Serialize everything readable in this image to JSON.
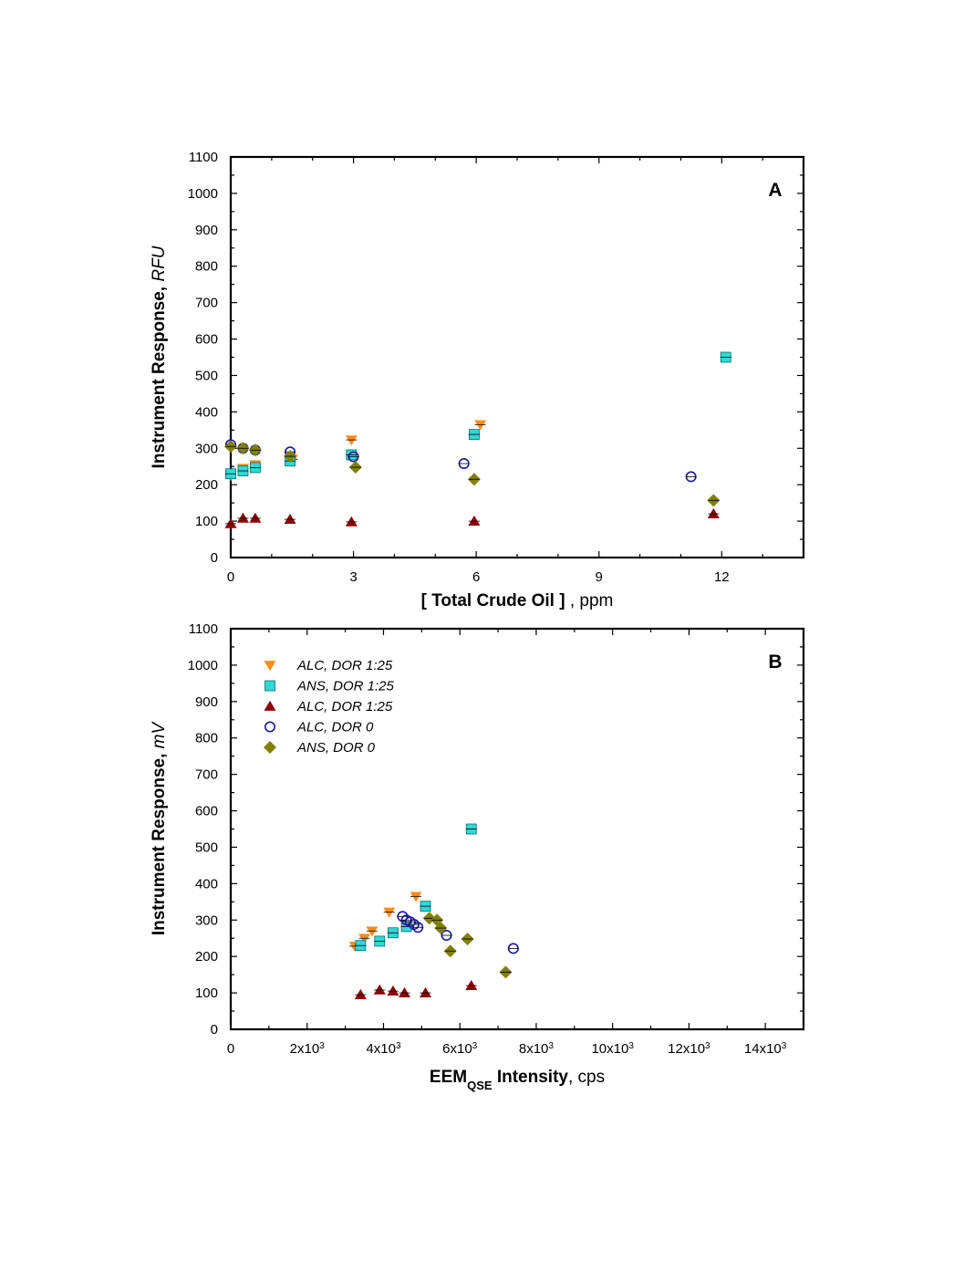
{
  "chart_data": [
    {
      "type": "scatter",
      "panel_label": "A",
      "xlabel_parts": [
        {
          "text": "[ Total Crude Oil ]",
          "weight": "bold"
        },
        {
          "text": " , ppm",
          "weight": "normal"
        }
      ],
      "ylabel_parts": [
        {
          "text": "Instrument Response, ",
          "weight": "bold"
        },
        {
          "text": "RFU",
          "style": "italic"
        }
      ],
      "xlim": [
        0,
        14
      ],
      "ylim": [
        0,
        1100
      ],
      "xticks": [
        {
          "v": 0,
          "label": "0"
        },
        {
          "v": 3,
          "label": "3"
        },
        {
          "v": 6,
          "label": "6"
        },
        {
          "v": 9,
          "label": "9"
        },
        {
          "v": 12,
          "label": "12"
        }
      ],
      "yticks": [
        {
          "v": 0,
          "label": "0"
        },
        {
          "v": 100,
          "label": "100"
        },
        {
          "v": 200,
          "label": "200"
        },
        {
          "v": 300,
          "label": "300"
        },
        {
          "v": 400,
          "label": "400"
        },
        {
          "v": 500,
          "label": "500"
        },
        {
          "v": 600,
          "label": "600"
        },
        {
          "v": 700,
          "label": "700"
        },
        {
          "v": 800,
          "label": "800"
        },
        {
          "v": 900,
          "label": "900"
        },
        {
          "v": 1000,
          "label": "1000"
        },
        {
          "v": 1100,
          "label": "1100"
        }
      ],
      "grid": false,
      "series": [
        {
          "marker": "triangle-down",
          "color": "#ff8c1a",
          "points": [
            [
              0,
              225
            ],
            [
              0.3,
              245
            ],
            [
              0.6,
              255
            ],
            [
              1.5,
              270
            ],
            [
              2.95,
              323
            ],
            [
              6.1,
              365
            ]
          ]
        },
        {
          "marker": "square",
          "color": "#33d6d6",
          "points": [
            [
              0,
              230
            ],
            [
              0.3,
              238
            ],
            [
              0.6,
              247
            ],
            [
              1.45,
              265
            ],
            [
              2.95,
              282
            ],
            [
              5.95,
              338
            ],
            [
              12.1,
              550
            ]
          ]
        },
        {
          "marker": "triangle-up",
          "color": "#8b0000",
          "points": [
            [
              0,
              93
            ],
            [
              0.3,
              108
            ],
            [
              0.6,
              108
            ],
            [
              1.45,
              105
            ],
            [
              2.95,
              98
            ],
            [
              5.95,
              100
            ],
            [
              11.8,
              120
            ]
          ]
        },
        {
          "marker": "circle-open",
          "color": "#1a1a99",
          "points": [
            [
              0,
              310
            ],
            [
              0.3,
              300
            ],
            [
              0.6,
              295
            ],
            [
              1.45,
              290
            ],
            [
              3.0,
              277
            ],
            [
              5.7,
              258
            ],
            [
              11.25,
              222
            ]
          ]
        },
        {
          "marker": "diamond",
          "color": "#808000",
          "points": [
            [
              0,
              305
            ],
            [
              0.3,
              300
            ],
            [
              0.6,
              295
            ],
            [
              1.45,
              278
            ],
            [
              3.05,
              248
            ],
            [
              5.95,
              215
            ],
            [
              11.8,
              157
            ]
          ]
        }
      ]
    },
    {
      "type": "scatter",
      "panel_label": "B",
      "xlabel_parts": [
        {
          "text": "EEM",
          "weight": "bold"
        },
        {
          "text": "QSE",
          "weight": "bold",
          "sub": true
        },
        {
          "text": " Intensity",
          "weight": "bold"
        },
        {
          "text": ", cps",
          "weight": "normal"
        }
      ],
      "ylabel_parts": [
        {
          "text": "Instrument Response, ",
          "weight": "bold"
        },
        {
          "text": "mV",
          "style": "italic"
        }
      ],
      "xlim": [
        0,
        15000
      ],
      "ylim": [
        0,
        1100
      ],
      "xticks": [
        {
          "v": 0,
          "label": "0"
        },
        {
          "v": 2000,
          "label": "2x10",
          "sup": "3"
        },
        {
          "v": 4000,
          "label": "4x10",
          "sup": "3"
        },
        {
          "v": 6000,
          "label": "6x10",
          "sup": "3"
        },
        {
          "v": 8000,
          "label": "8x10",
          "sup": "3"
        },
        {
          "v": 10000,
          "label": "10x10",
          "sup": "3"
        },
        {
          "v": 12000,
          "label": "12x10",
          "sup": "3"
        },
        {
          "v": 14000,
          "label": "14x10",
          "sup": "3"
        }
      ],
      "yticks": [
        {
          "v": 0,
          "label": "0"
        },
        {
          "v": 100,
          "label": "100"
        },
        {
          "v": 200,
          "label": "200"
        },
        {
          "v": 300,
          "label": "300"
        },
        {
          "v": 400,
          "label": "400"
        },
        {
          "v": 500,
          "label": "500"
        },
        {
          "v": 600,
          "label": "600"
        },
        {
          "v": 700,
          "label": "700"
        },
        {
          "v": 800,
          "label": "800"
        },
        {
          "v": 900,
          "label": "900"
        },
        {
          "v": 1000,
          "label": "1000"
        },
        {
          "v": 1100,
          "label": "1100"
        }
      ],
      "grid": false,
      "legend_position": "top-left",
      "series": [
        {
          "name": "ALC, DOR 1:25",
          "marker": "triangle-down",
          "color": "#ff8c1a",
          "points": [
            [
              3250,
              228
            ],
            [
              3500,
              250
            ],
            [
              3700,
              270
            ],
            [
              4150,
              322
            ],
            [
              4850,
              365
            ]
          ]
        },
        {
          "name": "ANS, DOR 1:25",
          "marker": "square",
          "color": "#33d6d6",
          "points": [
            [
              3400,
              230
            ],
            [
              3900,
              242
            ],
            [
              4250,
              265
            ],
            [
              4600,
              282
            ],
            [
              5100,
              338
            ],
            [
              6300,
              550
            ]
          ]
        },
        {
          "name": "ALC, DOR 1:25",
          "marker": "triangle-up",
          "color": "#8b0000",
          "points": [
            [
              3400,
              95
            ],
            [
              3900,
              108
            ],
            [
              4250,
              105
            ],
            [
              4550,
              100
            ],
            [
              5100,
              100
            ],
            [
              6300,
              120
            ]
          ]
        },
        {
          "name": "ALC, DOR 0",
          "marker": "circle-open",
          "color": "#1a1a99",
          "points": [
            [
              4500,
              310
            ],
            [
              4600,
              300
            ],
            [
              4700,
              295
            ],
            [
              4800,
              288
            ],
            [
              4900,
              280
            ],
            [
              5650,
              258
            ],
            [
              7400,
              222
            ]
          ]
        },
        {
          "name": "ANS, DOR 0",
          "marker": "diamond",
          "color": "#808000",
          "points": [
            [
              5200,
              305
            ],
            [
              5400,
              300
            ],
            [
              5500,
              278
            ],
            [
              5750,
              215
            ],
            [
              6200,
              248
            ],
            [
              7200,
              157
            ]
          ]
        }
      ]
    }
  ]
}
